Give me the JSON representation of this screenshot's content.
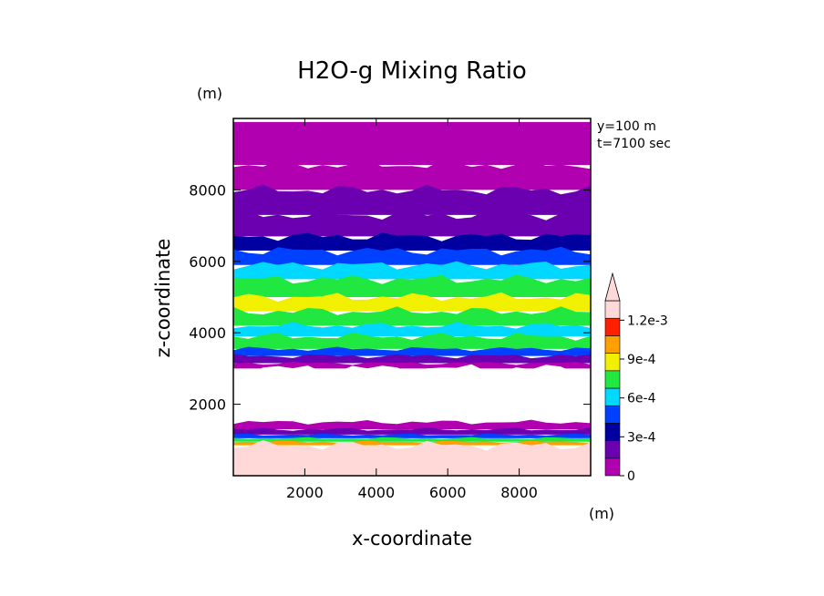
{
  "chart_data": {
    "type": "heatmap",
    "title": "H2O-g Mixing Ratio",
    "xlabel": "x-coordinate",
    "ylabel": "z-coordinate",
    "x_unit": "(m)",
    "y_unit": "(m)",
    "annotations": [
      "y=100 m",
      "t=7100 sec"
    ],
    "xlim": [
      0,
      10000
    ],
    "ylim": [
      0,
      10000
    ],
    "x_ticks": [
      2000,
      4000,
      6000,
      8000
    ],
    "x_tick_labels": [
      "2000",
      "4000",
      "6000",
      "8000"
    ],
    "y_ticks": [
      2000,
      4000,
      6000,
      8000
    ],
    "y_tick_labels": [
      "2000",
      "4000",
      "6000",
      "8000"
    ],
    "colorbar": {
      "levels": [
        0,
        0.00015,
        0.0003,
        0.00045,
        0.0006,
        0.00075,
        0.0009,
        0.00105,
        0.0012
      ],
      "tick_labels": [
        "0",
        "3e-4",
        "6e-4",
        "9e-4",
        "1.2e-3"
      ],
      "tick_values": [
        0,
        0.0003,
        0.0006,
        0.0009,
        0.0012
      ],
      "colors": [
        "#b000b0",
        "#6a00b0",
        "#0000a0",
        "#0040ff",
        "#00d8ff",
        "#20e840",
        "#f0f000",
        "#ffa000",
        "#ff2000",
        "#ffd8d8"
      ],
      "over_color": "#ffd8d8"
    },
    "bands": [
      {
        "z": 9900,
        "value": 5e-05
      },
      {
        "z": 8700,
        "value": 0.00012
      },
      {
        "z": 8000,
        "value": 0.0002
      },
      {
        "z": 7300,
        "value": 0.00028
      },
      {
        "z": 6700,
        "value": 0.00038
      },
      {
        "z": 6300,
        "value": 0.00052
      },
      {
        "z": 5900,
        "value": 0.00066
      },
      {
        "z": 5500,
        "value": 0.0008
      },
      {
        "z": 5000,
        "value": 0.00097
      },
      {
        "z": 4600,
        "value": 0.0008
      },
      {
        "z": 4200,
        "value": 0.00066
      },
      {
        "z": 3900,
        "value": 0.0008
      },
      {
        "z": 3550,
        "value": 0.00052
      },
      {
        "z": 3350,
        "value": 0.00025
      },
      {
        "z": 3150,
        "value": 8e-05
      },
      {
        "z": 3000,
        "value": null
      },
      {
        "z": 1500,
        "value": 5e-05
      },
      {
        "z": 1300,
        "value": 0.0002
      },
      {
        "z": 1150,
        "value": 0.00045
      },
      {
        "z": 1050,
        "value": 0.0008
      },
      {
        "z": 950,
        "value": 0.0011
      },
      {
        "z": 850,
        "value": 0.0013
      },
      {
        "z": 0,
        "value": 0.0013
      }
    ]
  }
}
